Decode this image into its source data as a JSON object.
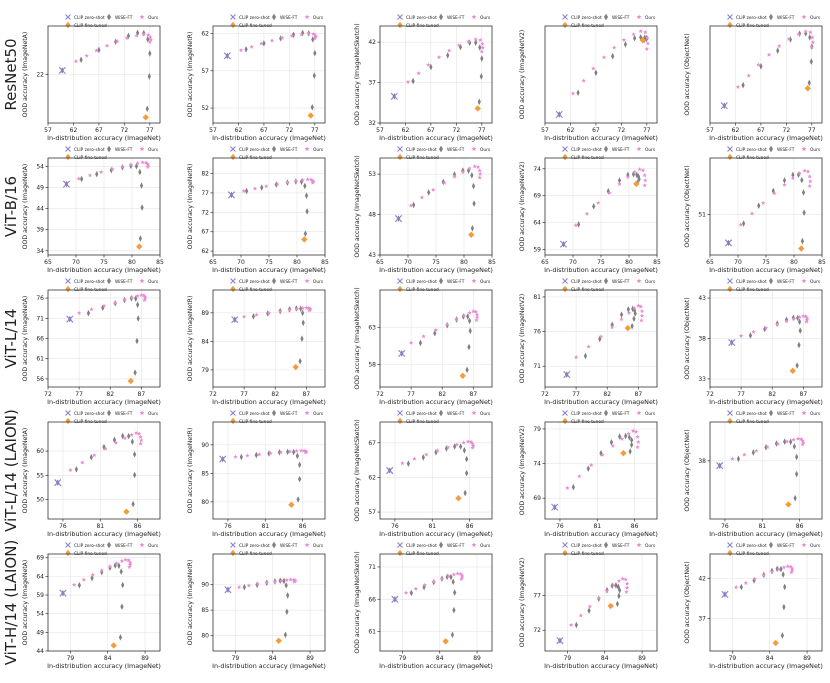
{
  "legend_labels": {
    "zeroshot": "CLIP zero-shot",
    "wiseft": "WiSE-FT",
    "ours": "Ours",
    "finetuned": "CLIP fine-tuned"
  },
  "colors": {
    "zeroshot": "#8b7fd4",
    "wiseft": "#808080",
    "ours": "#e98bd4",
    "finetuned": "#f39c3c"
  },
  "xlabel": "In-distribution accuracy (ImageNet)",
  "rows": [
    {
      "label": "ResNet50",
      "xlim": [
        57,
        79
      ],
      "xticks": [
        57,
        62,
        67,
        72,
        77
      ],
      "zs_x": 59.8,
      "ft_x": 76.2,
      "ours_x": [
        62.5,
        64.6,
        66.5,
        68.6,
        70.6,
        72.5,
        74.4,
        75.8,
        76.7,
        77.1,
        77.2,
        77.0
      ],
      "wise_x": [
        59.8,
        63.5,
        67.0,
        70.3,
        72.8,
        74.6,
        75.8,
        76.6,
        77.0,
        76.9,
        76.5
      ],
      "panels": [
        {
          "ylabel": "OOD accuracy (ImageNetA)",
          "ylim": [
            16,
            28
          ],
          "yticks": [
            22
          ],
          "zs": 22.5,
          "ft": 16.7,
          "ours_peak": 27.0,
          "wise_peak": 27.2
        },
        {
          "ylabel": "OOD accuracy (ImageNetR)",
          "ylim": [
            50,
            63
          ],
          "yticks": [
            52,
            57,
            62
          ],
          "zs": 59.0,
          "ft": 51.0,
          "ours_peak": 62.0,
          "wise_peak": 62.1
        },
        {
          "ylabel": "OOD accuracy (ImageNetSketch)",
          "ylim": [
            32,
            44
          ],
          "yticks": [
            32,
            37,
            42
          ],
          "zs": 35.3,
          "ft": 33.8,
          "ours_peak": 42.4,
          "wise_peak": 42.0
        },
        {
          "ylabel": "OOD accuracy (ImageNetV2)",
          "ylim": [
            51,
            68
          ],
          "yticks": [],
          "zs": 52.5,
          "ft": 65.5,
          "ours_peak": 67.2,
          "wise_peak": 66.0
        },
        {
          "ylabel": "OOD accuracy (ObjectNet)",
          "ylim": [
            36,
            50
          ],
          "yticks": [],
          "zs": 38.5,
          "ft": 41.0,
          "ours_peak": 49.3,
          "wise_peak": 49.0
        }
      ]
    },
    {
      "label": "ViT-B/16",
      "xlim": [
        65,
        85
      ],
      "xticks": [
        65,
        70,
        75,
        80,
        85
      ],
      "zs_x": 68.3,
      "ft_x": 81.3,
      "ours_x": [
        70.5,
        72.5,
        74.5,
        76.5,
        78.3,
        79.8,
        81.0,
        81.9,
        82.5,
        82.8,
        82.9,
        82.8
      ],
      "wise_x": [
        68.3,
        71.0,
        73.7,
        76.3,
        78.3,
        79.8,
        80.8,
        81.4,
        81.7,
        81.8,
        81.5
      ],
      "panels": [
        {
          "ylabel": "OOD accuracy (ImageNetA)",
          "ylim": [
            33,
            56
          ],
          "yticks": [
            34,
            39,
            44,
            49,
            54
          ],
          "zs": 49.8,
          "ft": 35.0,
          "ours_peak": 55.0,
          "wise_peak": 54.2
        },
        {
          "ylabel": "OOD accuracy (ImageNetR)",
          "ylim": [
            61,
            86
          ],
          "yticks": [
            62,
            67,
            72,
            77,
            82
          ],
          "zs": 76.5,
          "ft": 65.0,
          "ours_peak": 80.5,
          "wise_peak": 80.0
        },
        {
          "ylabel": "OOD accuracy (ImageNetSketch)",
          "ylim": [
            43,
            55
          ],
          "yticks": [
            43,
            48,
            53
          ],
          "zs": 47.5,
          "ft": 45.5,
          "ours_peak": 54.0,
          "wise_peak": 53.5
        },
        {
          "ylabel": "OOD accuracy (ImageNetV2)",
          "ylim": [
            58,
            76
          ],
          "yticks": [
            59,
            64,
            69,
            74
          ],
          "zs": 60.0,
          "ft": 71.2,
          "ours_peak": 74.0,
          "wise_peak": 73.0
        },
        {
          "ylabel": "OOD accuracy (ObjectNet)",
          "ylim": [
            46,
            58
          ],
          "yticks": [
            51
          ],
          "zs": 47.5,
          "ft": 46.8,
          "ours_peak": 56.5,
          "wise_peak": 56.0
        }
      ]
    },
    {
      "label": "ViT-L/14",
      "xlim": [
        72,
        90
      ],
      "xticks": [
        72,
        77,
        82,
        87
      ],
      "zs_x": 75.5,
      "ft_x": 85.3,
      "ours_x": [
        77.0,
        79.0,
        81.0,
        82.8,
        84.3,
        85.5,
        86.4,
        87.0,
        87.4,
        87.6,
        87.6,
        87.5
      ],
      "wise_x": [
        75.5,
        78.5,
        80.8,
        82.8,
        84.3,
        85.4,
        86.1,
        86.4,
        86.5,
        86.3,
        86.0
      ],
      "panels": [
        {
          "ylabel": "OOD accuracy (ImageNetA)",
          "ylim": [
            54,
            78
          ],
          "yticks": [
            56,
            61,
            66,
            71,
            76
          ],
          "zs": 70.8,
          "ft": 55.5,
          "ours_peak": 76.8,
          "wise_peak": 76.0
        },
        {
          "ylabel": "OOD accuracy (ImageNetR)",
          "ylim": [
            76,
            93
          ],
          "yticks": [
            79,
            84,
            89
          ],
          "zs": 87.8,
          "ft": 79.5,
          "ours_peak": 89.9,
          "wise_peak": 89.8
        },
        {
          "ylabel": "OOD accuracy (ImageNetSketch)",
          "ylim": [
            55,
            68
          ],
          "yticks": [
            58,
            63
          ],
          "zs": 59.5,
          "ft": 56.5,
          "ours_peak": 65.2,
          "wise_peak": 64.5
        },
        {
          "ylabel": "OOD accuracy (ImageNetV2)",
          "ylim": [
            68,
            82
          ],
          "yticks": [
            71,
            76,
            81
          ],
          "zs": 69.8,
          "ft": 76.5,
          "ours_peak": 79.8,
          "wise_peak": 79.3
        },
        {
          "ylabel": "OOD accuracy (ObjectNet)",
          "ylim": [
            32,
            44
          ],
          "yticks": [
            33,
            38,
            43
          ],
          "zs": 37.5,
          "ft": 34.0,
          "ours_peak": 40.8,
          "wise_peak": 40.6
        }
      ]
    },
    {
      "label": "ViT-L/14 (LAION)",
      "xlim": [
        74,
        89
      ],
      "xticks": [
        76,
        81,
        86
      ],
      "zs_x": 75.3,
      "ft_x": 84.5,
      "ours_x": [
        77.0,
        78.6,
        80.2,
        81.7,
        83.1,
        84.3,
        85.2,
        85.8,
        86.2,
        86.4,
        86.5,
        86.4
      ],
      "wise_x": [
        75.3,
        77.8,
        79.8,
        81.5,
        82.9,
        84.0,
        84.8,
        85.3,
        85.6,
        85.6,
        85.4
      ],
      "panels": [
        {
          "ylabel": "OOD accuracy (ImageNetA)",
          "ylim": [
            46,
            66
          ],
          "yticks": [
            50,
            55,
            60
          ],
          "zs": 53.5,
          "ft": 47.5,
          "ours_peak": 63.8,
          "wise_peak": 63.2
        },
        {
          "ylabel": "OOD accuracy (ImageNetR)",
          "ylim": [
            77,
            94
          ],
          "yticks": [
            80,
            85,
            90
          ],
          "zs": 87.5,
          "ft": 79.5,
          "ours_peak": 89.0,
          "wise_peak": 88.8
        },
        {
          "ylabel": "OOD accuracy (ImageNetSketch)",
          "ylim": [
            56,
            70
          ],
          "yticks": [
            57,
            62,
            67
          ],
          "zs": 63.0,
          "ft": 59.0,
          "ours_peak": 67.2,
          "wise_peak": 66.5
        },
        {
          "ylabel": "OOD accuracy (ImageNetV2)",
          "ylim": [
            66,
            80
          ],
          "yticks": [
            69,
            74,
            79
          ],
          "zs": 67.7,
          "ft": 75.5,
          "ours_peak": 78.8,
          "wise_peak": 78.0
        },
        {
          "ylabel": "OOD accuracy (ObjectNet)",
          "ylim": [
            32,
            42
          ],
          "yticks": [
            38
          ],
          "zs": 37.5,
          "ft": 33.5,
          "ours_peak": 40.3,
          "wise_peak": 40.0
        }
      ]
    },
    {
      "label": "ViT-H/14 (LAION)",
      "xlim": [
        76,
        91
      ],
      "xticks": [
        79,
        84,
        89
      ],
      "zs_x": 78.0,
      "ft_x": 84.8,
      "ours_x": [
        79.5,
        80.8,
        82.0,
        83.2,
        84.3,
        85.2,
        85.9,
        86.4,
        86.8,
        87.0,
        87.0,
        86.9
      ],
      "wise_x": [
        78.0,
        80.2,
        81.9,
        83.2,
        84.3,
        85.0,
        85.5,
        85.8,
        86.0,
        85.9,
        85.7
      ],
      "panels": [
        {
          "ylabel": "OOD accuracy (ImageNetA)",
          "ylim": [
            44,
            70
          ],
          "yticks": [
            44,
            49,
            54,
            59,
            64,
            69
          ],
          "zs": 59.5,
          "ft": 45.5,
          "ours_peak": 68.5,
          "wise_peak": 67.0
        },
        {
          "ylabel": "OOD accuracy (ImageNetR)",
          "ylim": [
            77,
            96
          ],
          "yticks": [
            80,
            85,
            90
          ],
          "zs": 89.0,
          "ft": 79.0,
          "ours_peak": 91.0,
          "wise_peak": 90.8
        },
        {
          "ylabel": "OOD accuracy (ImageNetSketch)",
          "ylim": [
            58,
            73
          ],
          "yticks": [
            61,
            66,
            71
          ],
          "zs": 66.0,
          "ft": 59.5,
          "ours_peak": 70.0,
          "wise_peak": 69.5
        },
        {
          "ylabel": "OOD accuracy (ImageNetV2)",
          "ylim": [
            69,
            83
          ],
          "yticks": [
            72,
            77
          ],
          "zs": 70.5,
          "ft": 75.5,
          "ours_peak": 79.5,
          "wise_peak": 78.5
        },
        {
          "ylabel": "OOD accuracy (ObjectNet)",
          "ylim": [
            33,
            45
          ],
          "yticks": [
            37,
            42
          ],
          "zs": 40.0,
          "ft": 34.0,
          "ours_peak": 43.5,
          "wise_peak": 43.2
        }
      ]
    }
  ]
}
